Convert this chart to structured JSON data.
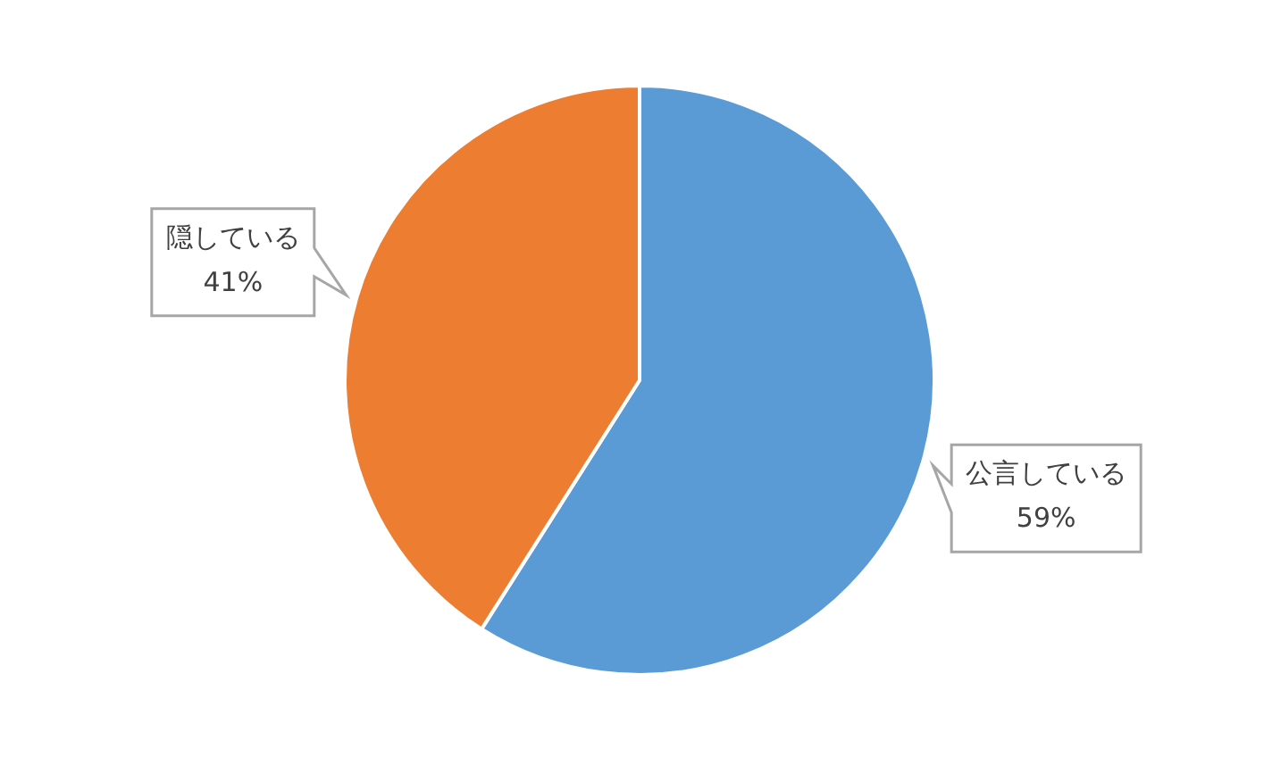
{
  "chart_data": {
    "type": "pie",
    "categories": [
      "公言している",
      "隠している"
    ],
    "values": [
      59,
      41
    ],
    "colors": [
      "#5b9bd5",
      "#ed7d31"
    ],
    "value_labels": [
      "59%",
      "41%"
    ],
    "legend": false
  }
}
